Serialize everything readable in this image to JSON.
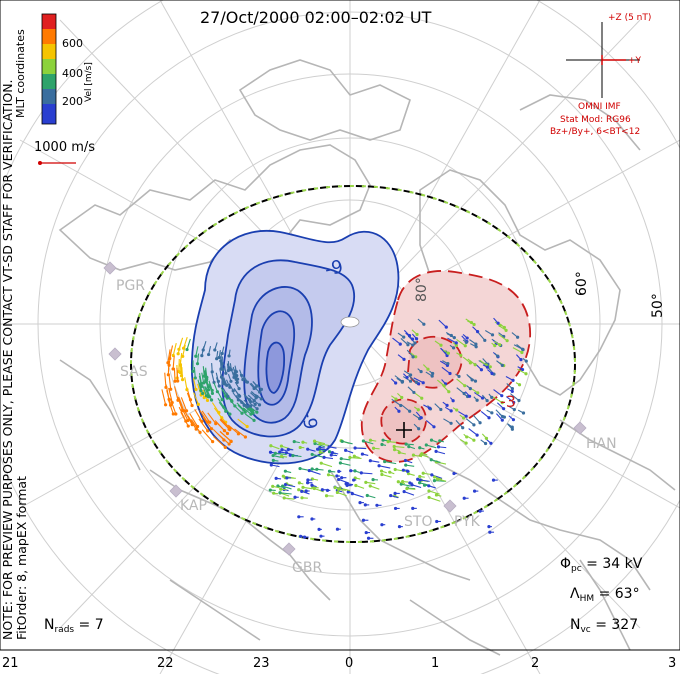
{
  "title": "27/Oct/2000 02:00–02:02 UT",
  "colorbar": {
    "label": "Vel [m/s]",
    "ticks": [
      "600",
      "400",
      "200"
    ],
    "colors": [
      "#e02020",
      "#ff7a00",
      "#f5c400",
      "#8cd23c",
      "#2ea36b",
      "#3a6e9e",
      "#2a3fd0"
    ]
  },
  "coords_label": "MLT coordinates",
  "scale_label": "1000 m/s",
  "note": "NOTE: FOR PREVIEW PURPOSES ONLY, PLEASE CONTACT VT-SD STAFF FOR VERIFICATION.",
  "fit_info": "FitOrder: 8, mapEX format",
  "imf": {
    "z_label": "+Z (5 nT)",
    "y_label": "+Y",
    "source": "OMNI IMF",
    "model": "Stat Mod: RG96",
    "bins": "Bz+/By+, 6<BT<12"
  },
  "stats": {
    "phi_symbol": "Φ",
    "phi_sub": "pc",
    "phi_value": " = 34 kV",
    "lambda_symbol": "Λ",
    "lambda_sub": "HM",
    "lambda_value": " = 63°",
    "n_symbol": "N",
    "nvc_sub": "vc",
    "nvc_value": " = 327",
    "nrads_sub": "rads",
    "nrads_value": " = 7"
  },
  "mlt_ticks": [
    "21",
    "22",
    "23",
    "0",
    "1",
    "2",
    "3"
  ],
  "latitude_labels": [
    "60°",
    "50°",
    "80°"
  ],
  "contour_labels": [
    "-9",
    "-9",
    "-3"
  ],
  "stations": [
    "PGR",
    "SAS",
    "KAP",
    "GBR",
    "HAN",
    "STO",
    "PYK"
  ],
  "colors": {
    "negative_cell": "#1a3fb0",
    "positive_cell": "#d02020",
    "hmb": "#000000",
    "hmb_dash": "#9bd84a",
    "grid": "#c8c8c8",
    "coast": "#b4b4b4"
  }
}
